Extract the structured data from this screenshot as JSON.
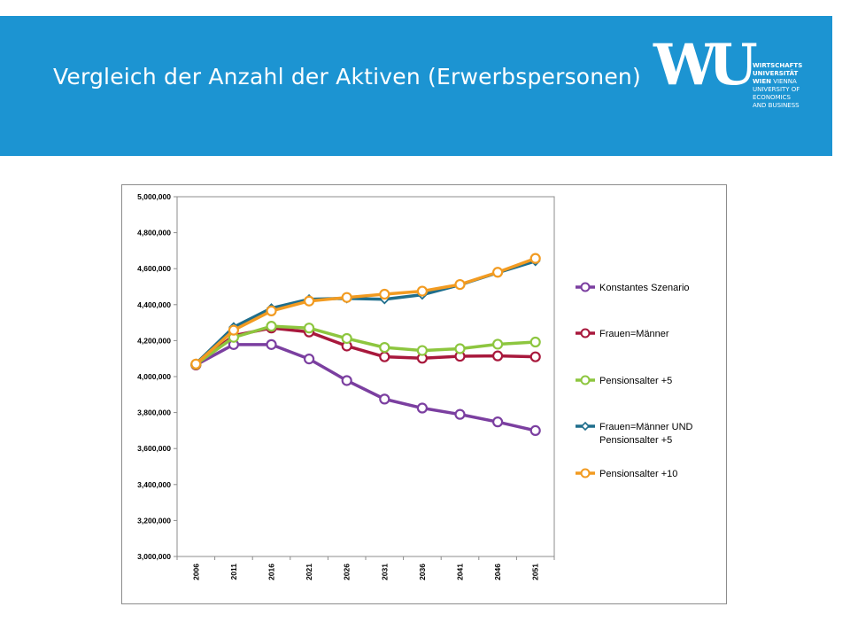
{
  "slide": {
    "title": "Vergleich der Anzahl der Aktiven (Erwerbspersonen)"
  },
  "logo": {
    "mark": "WU",
    "lines": [
      "WIRTSCHAFTS",
      "UNIVERSITÄT",
      "WIEN",
      "VIENNA",
      "UNIVERSITY OF",
      "ECONOMICS",
      "AND BUSINESS"
    ]
  },
  "colors": {
    "header_band": "#1c94d2",
    "konstant": "#7b3fa0",
    "frauen_maenner": "#a8183c",
    "pension5": "#8dc63f",
    "frauen_maenner_pension5": "#1f6e8c",
    "pension10": "#f29b21"
  },
  "chart_data": {
    "type": "line",
    "title": "",
    "xlabel": "",
    "ylabel": "",
    "categories": [
      "2006",
      "2011",
      "2016",
      "2021",
      "2026",
      "2031",
      "2036",
      "2041",
      "2046",
      "2051"
    ],
    "ylim": [
      3000000,
      5000000
    ],
    "yticks": [
      "3,000,000",
      "3,200,000",
      "3,400,000",
      "3,600,000",
      "3,800,000",
      "4,000,000",
      "4,200,000",
      "4,400,000",
      "4,600,000",
      "4,800,000",
      "5,000,000"
    ],
    "grid": false,
    "legend_position": "right",
    "series": [
      {
        "name": "Konstantes Szenario",
        "marker": "circle",
        "color": "#7b3fa0",
        "values": [
          4065000,
          4178000,
          4178000,
          4098000,
          3978000,
          3875000,
          3825000,
          3790000,
          3748000,
          3700000
        ]
      },
      {
        "name": "Frauen=Männer",
        "marker": "circle",
        "color": "#a8183c",
        "values": [
          4065000,
          4228000,
          4270000,
          4248000,
          4170000,
          4110000,
          4102000,
          4113000,
          4115000,
          4110000
        ]
      },
      {
        "name": "Pensionsalter +5",
        "marker": "circle",
        "color": "#8dc63f",
        "values": [
          4068000,
          4218000,
          4280000,
          4270000,
          4212000,
          4162000,
          4145000,
          4155000,
          4180000,
          4192000
        ]
      },
      {
        "name": "Frauen=Männer UND Pensionsalter +5",
        "legend_lines": [
          "Frauen=Männer UND",
          "Pensionsalter +5"
        ],
        "marker": "diamond",
        "color": "#1f6e8c",
        "values": [
          4072000,
          4275000,
          4380000,
          4430000,
          4435000,
          4430000,
          4455000,
          4510000,
          4578000,
          4642000
        ]
      },
      {
        "name": "Pensionsalter +10",
        "marker": "circle",
        "color": "#f29b21",
        "values": [
          4070000,
          4258000,
          4365000,
          4420000,
          4440000,
          4458000,
          4475000,
          4512000,
          4580000,
          4657000
        ]
      }
    ]
  }
}
